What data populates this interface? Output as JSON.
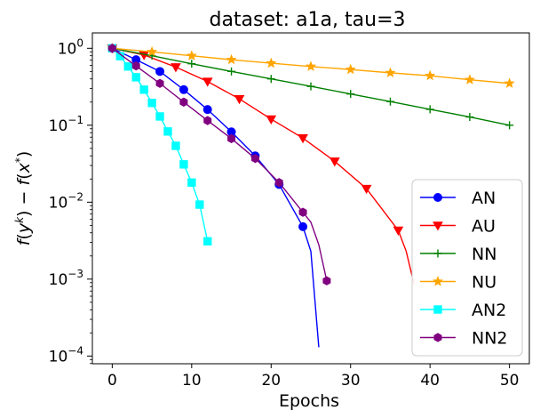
{
  "chart_data": {
    "type": "line",
    "title": "dataset: a1a, tau=3",
    "xlabel": "Epochs",
    "ylabel": "f(y^k) − f(x*)",
    "yscale": "log",
    "xlim": [
      -2.5,
      52.5
    ],
    "ylim_log10": [
      -4.1,
      0.2
    ],
    "xticks": [
      0,
      10,
      20,
      30,
      40,
      50
    ],
    "yticks": [
      {
        "exp": 0,
        "label": "10",
        "sup": "0"
      },
      {
        "exp": -1,
        "label": "10",
        "sup": "−1"
      },
      {
        "exp": -2,
        "label": "10",
        "sup": "−2"
      },
      {
        "exp": -3,
        "label": "10",
        "sup": "−3"
      },
      {
        "exp": -4,
        "label": "10",
        "sup": "−4"
      }
    ],
    "legend_position": "lower-right",
    "series": [
      {
        "name": "AN",
        "color": "#0000ff",
        "marker": "circle",
        "x": [
          0,
          3,
          6,
          9,
          12,
          15,
          18,
          21,
          24,
          25,
          26
        ],
        "y": [
          1.0,
          0.71,
          0.5,
          0.29,
          0.16,
          0.082,
          0.04,
          0.017,
          0.0048,
          0.0023,
          0.00013
        ],
        "markers_x": [
          0,
          3,
          6,
          9,
          12,
          15,
          18,
          21,
          24
        ]
      },
      {
        "name": "AU",
        "color": "#ff0000",
        "marker": "triangle-down",
        "x": [
          0,
          4,
          8,
          12,
          16,
          20,
          24,
          28,
          32,
          36,
          37,
          38
        ],
        "y": [
          1.0,
          0.82,
          0.57,
          0.37,
          0.22,
          0.12,
          0.068,
          0.034,
          0.015,
          0.0043,
          0.0023,
          0.00085
        ],
        "markers_x": [
          0,
          4,
          8,
          12,
          16,
          20,
          24,
          28,
          32,
          36
        ]
      },
      {
        "name": "NN",
        "color": "#008000",
        "marker": "plus",
        "x": [
          0,
          5,
          10,
          15,
          20,
          25,
          30,
          35,
          40,
          45,
          50
        ],
        "y": [
          1.0,
          0.8,
          0.63,
          0.5,
          0.4,
          0.32,
          0.255,
          0.203,
          0.161,
          0.128,
          0.1
        ],
        "markers_x": [
          0,
          5,
          10,
          15,
          20,
          25,
          30,
          35,
          40,
          45,
          50
        ]
      },
      {
        "name": "NU",
        "color": "#ffa500",
        "marker": "star",
        "x": [
          0,
          5,
          10,
          15,
          20,
          25,
          30,
          35,
          40,
          45,
          50
        ],
        "y": [
          1.0,
          0.9,
          0.8,
          0.71,
          0.64,
          0.58,
          0.53,
          0.48,
          0.44,
          0.39,
          0.35
        ],
        "markers_x": [
          0,
          5,
          10,
          15,
          20,
          25,
          30,
          35,
          40,
          45,
          50
        ]
      },
      {
        "name": "AN2",
        "color": "#00ffff",
        "marker": "square",
        "x": [
          0,
          1,
          2,
          3,
          4,
          5,
          6,
          7,
          8,
          9,
          10,
          11,
          12
        ],
        "y": [
          1.0,
          0.79,
          0.58,
          0.42,
          0.29,
          0.195,
          0.13,
          0.083,
          0.054,
          0.031,
          0.018,
          0.0093,
          0.0031
        ],
        "markers_x": [
          0,
          1,
          2,
          3,
          4,
          5,
          6,
          7,
          8,
          9,
          10,
          11,
          12
        ]
      },
      {
        "name": "NN2",
        "color": "#800080",
        "marker": "hexagon",
        "x": [
          0,
          3,
          6,
          9,
          12,
          15,
          18,
          21,
          24,
          25,
          26,
          27
        ],
        "y": [
          1.0,
          0.59,
          0.35,
          0.2,
          0.115,
          0.067,
          0.037,
          0.018,
          0.0074,
          0.0055,
          0.0028,
          0.00095
        ],
        "markers_x": [
          0,
          3,
          6,
          9,
          12,
          15,
          18,
          21,
          24,
          27
        ]
      }
    ]
  }
}
